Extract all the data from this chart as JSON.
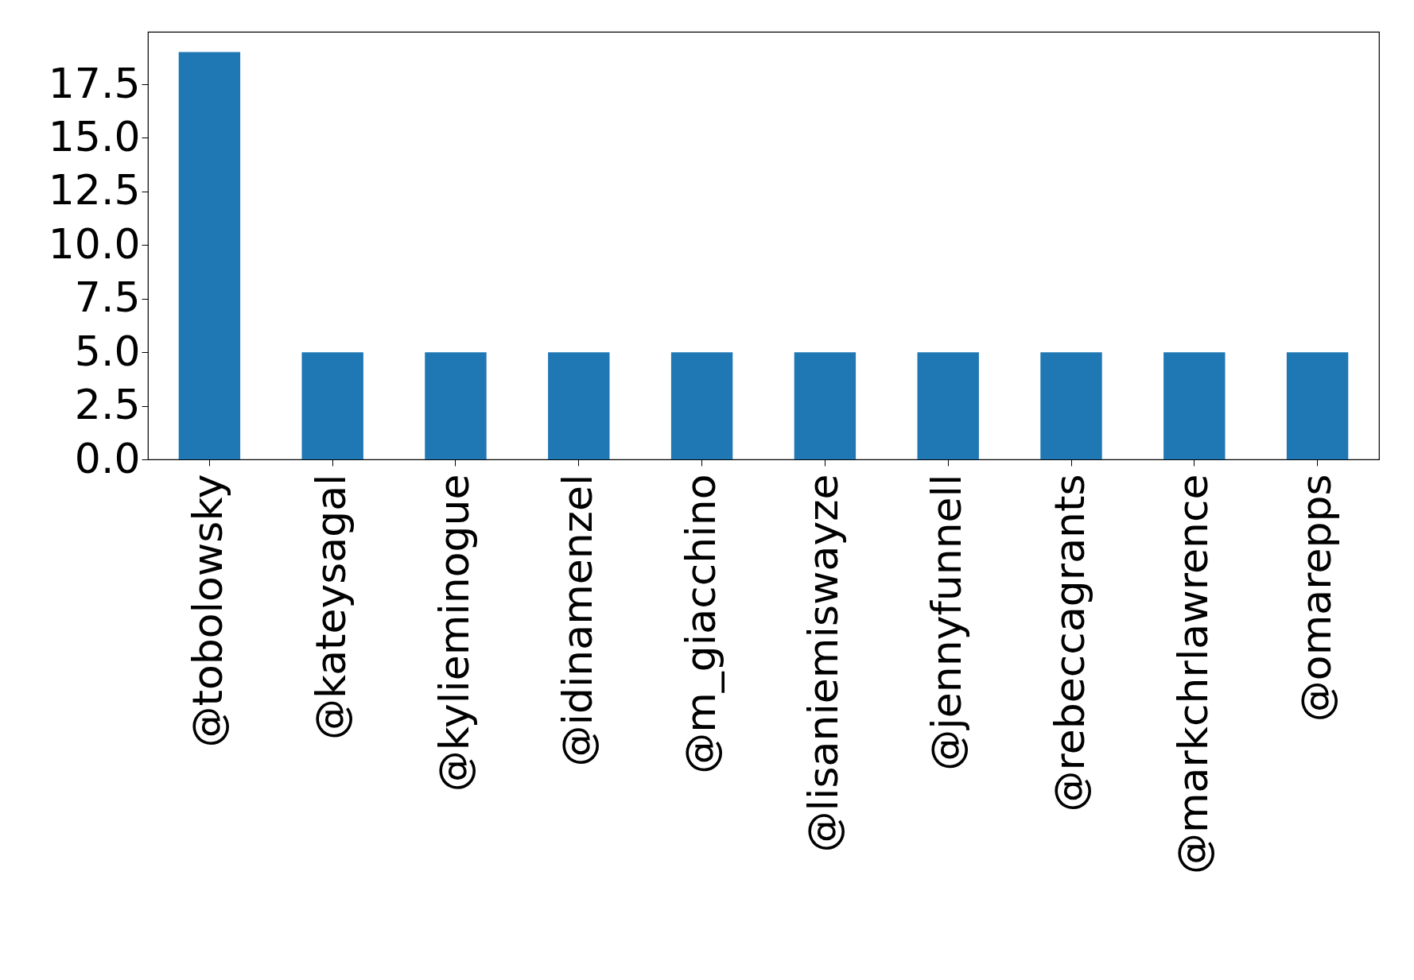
{
  "chart_data": {
    "type": "bar",
    "categories": [
      "@tobolowsky",
      "@kateysagal",
      "@kylieminogue",
      "@idinamenzel",
      "@m_giacchino",
      "@lisaniemiswayze",
      "@jennyfunnell",
      "@rebeccagrants",
      "@markchrlawrence",
      "@omarepps"
    ],
    "values": [
      19,
      5,
      5,
      5,
      5,
      5,
      5,
      5,
      5,
      5
    ],
    "color": "#1f77b4",
    "ylim": [
      0,
      19.95
    ],
    "yticks": [
      {
        "value": 0,
        "label": "0.0"
      },
      2.5,
      {
        "value": 5,
        "label": "5.0"
      },
      7.5,
      {
        "value": 10,
        "label": "10.0"
      },
      12.5,
      {
        "value": 15,
        "label": "15.0"
      },
      17.5
    ],
    "grid": false
  }
}
